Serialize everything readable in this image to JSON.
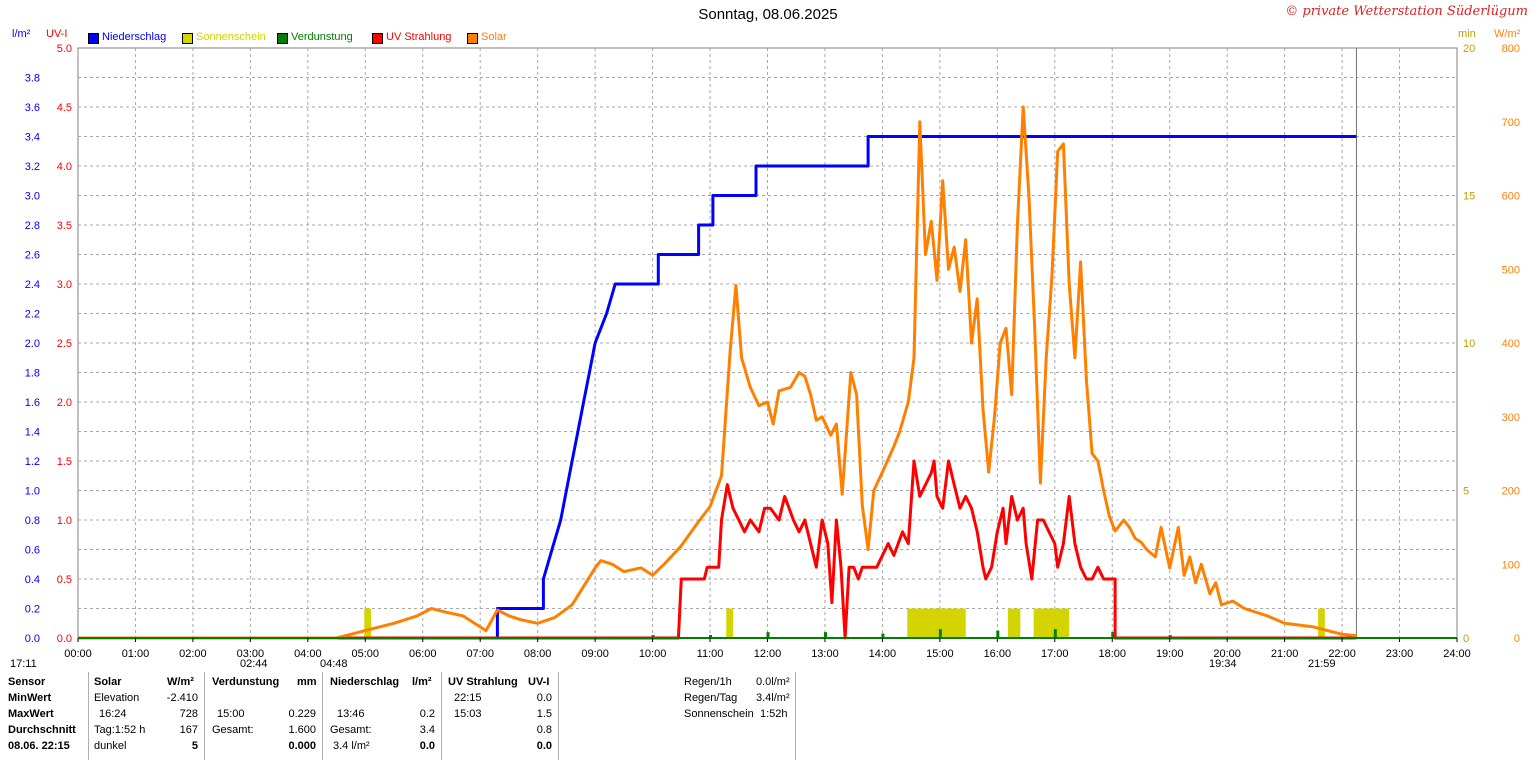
{
  "title": "Sonntag, 08.06.2025",
  "copyright": "© private Wetterstation Süderlügum",
  "legend": [
    {
      "label": "Niederschlag",
      "color": "#0000ff"
    },
    {
      "label": "Sonnenschein",
      "color": "#d4d400"
    },
    {
      "label": "Verdunstung",
      "color": "#008000"
    },
    {
      "label": "UV Strahlung",
      "color": "#ff0000"
    },
    {
      "label": "Solar",
      "color": "#ff8000"
    }
  ],
  "chart_data": {
    "type": "line",
    "x_ticks": [
      "00:00",
      "01:00",
      "02:00",
      "03:00",
      "04:00",
      "05:00",
      "06:00",
      "07:00",
      "08:00",
      "09:00",
      "10:00",
      "11:00",
      "12:00",
      "13:00",
      "14:00",
      "15:00",
      "16:00",
      "17:00",
      "18:00",
      "19:00",
      "20:00",
      "21:00",
      "22:00",
      "23:00",
      "24:00"
    ],
    "axes": {
      "rain": {
        "unit": "l/m²",
        "color": "#0000ff",
        "range": [
          0,
          4.0
        ],
        "ticks": [
          "0.0",
          "0.2",
          "0.4",
          "0.6",
          "0.8",
          "1.0",
          "1.2",
          "1.4",
          "1.6",
          "1.8",
          "2.0",
          "2.2",
          "2.4",
          "2.6",
          "2.8",
          "3.0",
          "3.2",
          "3.4",
          "3.6",
          "3.8"
        ]
      },
      "uv": {
        "unit": "UV-I",
        "color": "#ff0000",
        "range": [
          0,
          5.0
        ],
        "ticks": [
          "0.0",
          "0.5",
          "1.0",
          "1.5",
          "2.0",
          "2.5",
          "3.0",
          "3.5",
          "4.0",
          "4.5",
          "5.0"
        ]
      },
      "sunshine": {
        "unit": "min",
        "color": "#d4d400",
        "range": [
          0,
          20
        ],
        "ticks": [
          "0",
          "5",
          "10",
          "15",
          "20"
        ]
      },
      "solar": {
        "unit": "W/m²",
        "color": "#ff8000",
        "range": [
          0,
          800
        ],
        "ticks": [
          "0",
          "100",
          "200",
          "300",
          "400",
          "500",
          "600",
          "700",
          "800"
        ]
      }
    },
    "grid": true,
    "series": [
      {
        "name": "Niederschlag",
        "axis": "rain",
        "color": "#0000ff",
        "step": true,
        "points": [
          [
            0,
            0
          ],
          [
            7.3,
            0
          ],
          [
            7.3,
            0.2
          ],
          [
            8.1,
            0.2
          ],
          [
            8.1,
            0.4
          ],
          [
            8.25,
            0.6
          ],
          [
            8.4,
            0.8
          ],
          [
            8.5,
            1.0
          ],
          [
            8.6,
            1.2
          ],
          [
            8.7,
            1.4
          ],
          [
            8.8,
            1.6
          ],
          [
            8.9,
            1.8
          ],
          [
            9.0,
            2.0
          ],
          [
            9.2,
            2.2
          ],
          [
            9.35,
            2.4
          ],
          [
            10.1,
            2.4
          ],
          [
            10.1,
            2.6
          ],
          [
            10.8,
            2.6
          ],
          [
            10.8,
            2.8
          ],
          [
            11.05,
            2.8
          ],
          [
            11.05,
            3.0
          ],
          [
            11.8,
            3.0
          ],
          [
            11.8,
            3.2
          ],
          [
            13.75,
            3.2
          ],
          [
            13.75,
            3.4
          ],
          [
            22.25,
            3.4
          ]
        ]
      },
      {
        "name": "UV Strahlung",
        "axis": "uv",
        "color": "#ff0000",
        "points": [
          [
            0,
            0
          ],
          [
            10.45,
            0
          ],
          [
            10.5,
            0.5
          ],
          [
            10.9,
            0.5
          ],
          [
            10.95,
            0.6
          ],
          [
            11.15,
            0.6
          ],
          [
            11.2,
            1.0
          ],
          [
            11.3,
            1.3
          ],
          [
            11.4,
            1.1
          ],
          [
            11.5,
            1.0
          ],
          [
            11.6,
            0.9
          ],
          [
            11.7,
            1.0
          ],
          [
            11.85,
            0.9
          ],
          [
            11.95,
            1.1
          ],
          [
            12.05,
            1.1
          ],
          [
            12.2,
            1.0
          ],
          [
            12.3,
            1.2
          ],
          [
            12.45,
            1.0
          ],
          [
            12.55,
            0.9
          ],
          [
            12.65,
            1.0
          ],
          [
            12.75,
            0.8
          ],
          [
            12.85,
            0.6
          ],
          [
            12.95,
            1.0
          ],
          [
            13.05,
            0.8
          ],
          [
            13.12,
            0.3
          ],
          [
            13.2,
            1.0
          ],
          [
            13.28,
            0.6
          ],
          [
            13.35,
            0.0
          ],
          [
            13.42,
            0.6
          ],
          [
            13.5,
            0.6
          ],
          [
            13.58,
            0.5
          ],
          [
            13.65,
            0.6
          ],
          [
            13.9,
            0.6
          ],
          [
            14.1,
            0.8
          ],
          [
            14.2,
            0.7
          ],
          [
            14.35,
            0.9
          ],
          [
            14.45,
            0.8
          ],
          [
            14.55,
            1.5
          ],
          [
            14.65,
            1.2
          ],
          [
            14.75,
            1.3
          ],
          [
            14.85,
            1.4
          ],
          [
            14.9,
            1.5
          ],
          [
            14.95,
            1.2
          ],
          [
            15.05,
            1.1
          ],
          [
            15.15,
            1.5
          ],
          [
            15.25,
            1.3
          ],
          [
            15.35,
            1.1
          ],
          [
            15.45,
            1.2
          ],
          [
            15.55,
            1.1
          ],
          [
            15.65,
            0.9
          ],
          [
            15.75,
            0.6
          ],
          [
            15.8,
            0.5
          ],
          [
            15.9,
            0.6
          ],
          [
            16.0,
            0.9
          ],
          [
            16.1,
            1.1
          ],
          [
            16.15,
            0.8
          ],
          [
            16.25,
            1.2
          ],
          [
            16.35,
            1.0
          ],
          [
            16.45,
            1.1
          ],
          [
            16.5,
            0.8
          ],
          [
            16.6,
            0.5
          ],
          [
            16.7,
            1.0
          ],
          [
            16.8,
            1.0
          ],
          [
            16.9,
            0.9
          ],
          [
            17.0,
            0.8
          ],
          [
            17.05,
            0.6
          ],
          [
            17.15,
            0.8
          ],
          [
            17.25,
            1.2
          ],
          [
            17.35,
            0.8
          ],
          [
            17.45,
            0.6
          ],
          [
            17.55,
            0.5
          ],
          [
            17.65,
            0.5
          ],
          [
            17.75,
            0.6
          ],
          [
            17.85,
            0.5
          ],
          [
            18.05,
            0.5
          ],
          [
            18.05,
            0.0
          ],
          [
            22.25,
            0
          ]
        ]
      },
      {
        "name": "Solar",
        "axis": "solar",
        "color": "#ff8000",
        "points": [
          [
            0,
            0
          ],
          [
            4.5,
            0
          ],
          [
            4.75,
            5
          ],
          [
            5.0,
            10
          ],
          [
            5.5,
            20
          ],
          [
            5.9,
            30
          ],
          [
            6.15,
            40
          ],
          [
            6.4,
            35
          ],
          [
            6.7,
            30
          ],
          [
            7.1,
            10
          ],
          [
            7.3,
            38
          ],
          [
            7.5,
            30
          ],
          [
            7.7,
            25
          ],
          [
            8.0,
            20
          ],
          [
            8.3,
            28
          ],
          [
            8.6,
            45
          ],
          [
            8.8,
            70
          ],
          [
            9.0,
            95
          ],
          [
            9.1,
            105
          ],
          [
            9.3,
            100
          ],
          [
            9.5,
            90
          ],
          [
            9.8,
            95
          ],
          [
            10.0,
            85
          ],
          [
            10.2,
            100
          ],
          [
            10.5,
            125
          ],
          [
            10.8,
            158
          ],
          [
            11.0,
            178
          ],
          [
            11.2,
            220
          ],
          [
            11.35,
            390
          ],
          [
            11.45,
            478
          ],
          [
            11.55,
            380
          ],
          [
            11.7,
            340
          ],
          [
            11.85,
            315
          ],
          [
            12.0,
            320
          ],
          [
            12.1,
            290
          ],
          [
            12.2,
            335
          ],
          [
            12.4,
            340
          ],
          [
            12.55,
            360
          ],
          [
            12.65,
            355
          ],
          [
            12.75,
            330
          ],
          [
            12.85,
            295
          ],
          [
            12.95,
            300
          ],
          [
            13.1,
            275
          ],
          [
            13.2,
            290
          ],
          [
            13.3,
            195
          ],
          [
            13.45,
            360
          ],
          [
            13.55,
            330
          ],
          [
            13.65,
            180
          ],
          [
            13.75,
            120
          ],
          [
            13.85,
            200
          ],
          [
            14.0,
            225
          ],
          [
            14.2,
            260
          ],
          [
            14.3,
            280
          ],
          [
            14.45,
            320
          ],
          [
            14.55,
            380
          ],
          [
            14.65,
            700
          ],
          [
            14.75,
            520
          ],
          [
            14.85,
            565
          ],
          [
            14.95,
            485
          ],
          [
            15.05,
            620
          ],
          [
            15.15,
            500
          ],
          [
            15.25,
            530
          ],
          [
            15.35,
            470
          ],
          [
            15.45,
            540
          ],
          [
            15.55,
            400
          ],
          [
            15.65,
            460
          ],
          [
            15.75,
            310
          ],
          [
            15.85,
            225
          ],
          [
            15.95,
            300
          ],
          [
            16.05,
            400
          ],
          [
            16.15,
            420
          ],
          [
            16.25,
            330
          ],
          [
            16.35,
            560
          ],
          [
            16.45,
            720
          ],
          [
            16.55,
            600
          ],
          [
            16.65,
            420
          ],
          [
            16.75,
            210
          ],
          [
            16.85,
            380
          ],
          [
            16.95,
            490
          ],
          [
            17.05,
            660
          ],
          [
            17.15,
            670
          ],
          [
            17.25,
            480
          ],
          [
            17.35,
            380
          ],
          [
            17.45,
            510
          ],
          [
            17.55,
            350
          ],
          [
            17.65,
            250
          ],
          [
            17.75,
            240
          ],
          [
            17.85,
            200
          ],
          [
            17.95,
            165
          ],
          [
            18.05,
            145
          ],
          [
            18.2,
            160
          ],
          [
            18.3,
            150
          ],
          [
            18.4,
            135
          ],
          [
            18.5,
            130
          ],
          [
            18.6,
            120
          ],
          [
            18.75,
            110
          ],
          [
            18.85,
            150
          ],
          [
            19.0,
            95
          ],
          [
            19.15,
            150
          ],
          [
            19.25,
            85
          ],
          [
            19.35,
            110
          ],
          [
            19.45,
            75
          ],
          [
            19.55,
            100
          ],
          [
            19.7,
            60
          ],
          [
            19.8,
            75
          ],
          [
            19.9,
            45
          ],
          [
            20.1,
            50
          ],
          [
            20.3,
            40
          ],
          [
            20.5,
            35
          ],
          [
            20.7,
            30
          ],
          [
            21.0,
            20
          ],
          [
            21.5,
            15
          ],
          [
            22.0,
            5
          ],
          [
            22.25,
            3
          ]
        ]
      },
      {
        "name": "Sonnenschein",
        "axis": "sunshine",
        "type": "bar",
        "color": "#d4d400",
        "points": [
          [
            5.0,
            1
          ],
          [
            11.3,
            1
          ],
          [
            14.45,
            1
          ],
          [
            14.55,
            1
          ],
          [
            14.65,
            1
          ],
          [
            14.75,
            1
          ],
          [
            14.85,
            1
          ],
          [
            14.95,
            1
          ],
          [
            15.05,
            1
          ],
          [
            15.15,
            1
          ],
          [
            15.25,
            1
          ],
          [
            15.35,
            1
          ],
          [
            16.2,
            1
          ],
          [
            16.3,
            1
          ],
          [
            16.65,
            1
          ],
          [
            16.75,
            1
          ],
          [
            16.85,
            1
          ],
          [
            16.95,
            1
          ],
          [
            17.05,
            1
          ],
          [
            17.15,
            1
          ],
          [
            21.6,
            1
          ]
        ]
      },
      {
        "name": "Verdunstung",
        "axis": "rain",
        "type": "bar",
        "color": "#008000",
        "points": [
          [
            7.0,
            0.01
          ],
          [
            8.0,
            0.01
          ],
          [
            9.0,
            0.01
          ],
          [
            10.0,
            0.02
          ],
          [
            11.0,
            0.02
          ],
          [
            12.0,
            0.04
          ],
          [
            13.0,
            0.04
          ],
          [
            14.0,
            0.03
          ],
          [
            15.0,
            0.06
          ],
          [
            16.0,
            0.05
          ],
          [
            17.0,
            0.06
          ],
          [
            18.0,
            0.04
          ],
          [
            19.0,
            0.02
          ],
          [
            20.0,
            0.01
          ],
          [
            21.0,
            0.01
          ]
        ]
      }
    ],
    "day_markers": {
      "dawn": "17:11",
      "sunrise": "02:44",
      "sunrise2": "04:48",
      "sunset": "19:34",
      "dusk": "21:59"
    }
  },
  "table": {
    "sensor": {
      "h": "Sensor",
      "rows": [
        "MinWert",
        "MaxWert",
        "Durchschnitt",
        "08.06. 22:15"
      ]
    },
    "solar": {
      "h1": "Solar",
      "h2": "W/m²",
      "rows": [
        [
          "Elevation",
          "-2.410"
        ],
        [
          "16:24",
          "728"
        ],
        [
          "Tag:1:52 h",
          "167"
        ],
        [
          "dunkel",
          "5"
        ]
      ]
    },
    "evap": {
      "h1": "Verdunstung",
      "h2": "mm",
      "rows": [
        [
          "",
          ""
        ],
        [
          "15:00",
          "0.229"
        ],
        [
          "Gesamt:",
          "1.600"
        ],
        [
          "",
          "0.000"
        ]
      ]
    },
    "rain": {
      "h1": "Niederschlag",
      "h2": "l/m²",
      "rows": [
        [
          "",
          ""
        ],
        [
          "13:46",
          "0.2"
        ],
        [
          "Gesamt:",
          "3.4"
        ],
        [
          "3.4 l/m²",
          "0.0"
        ]
      ]
    },
    "uv": {
      "h1": "UV Strahlung",
      "h2": "UV-I",
      "rows": [
        [
          "22:15",
          "0.0"
        ],
        [
          "15:03",
          "1.5"
        ],
        [
          "",
          "0.8"
        ],
        [
          "",
          "0.0"
        ]
      ]
    },
    "summary": {
      "rows": [
        [
          "Regen/1h",
          "0.0l/m²"
        ],
        [
          "Regen/Tag",
          "3.4l/m²"
        ],
        [
          "Sonnenschein",
          "1:52h"
        ]
      ]
    }
  }
}
